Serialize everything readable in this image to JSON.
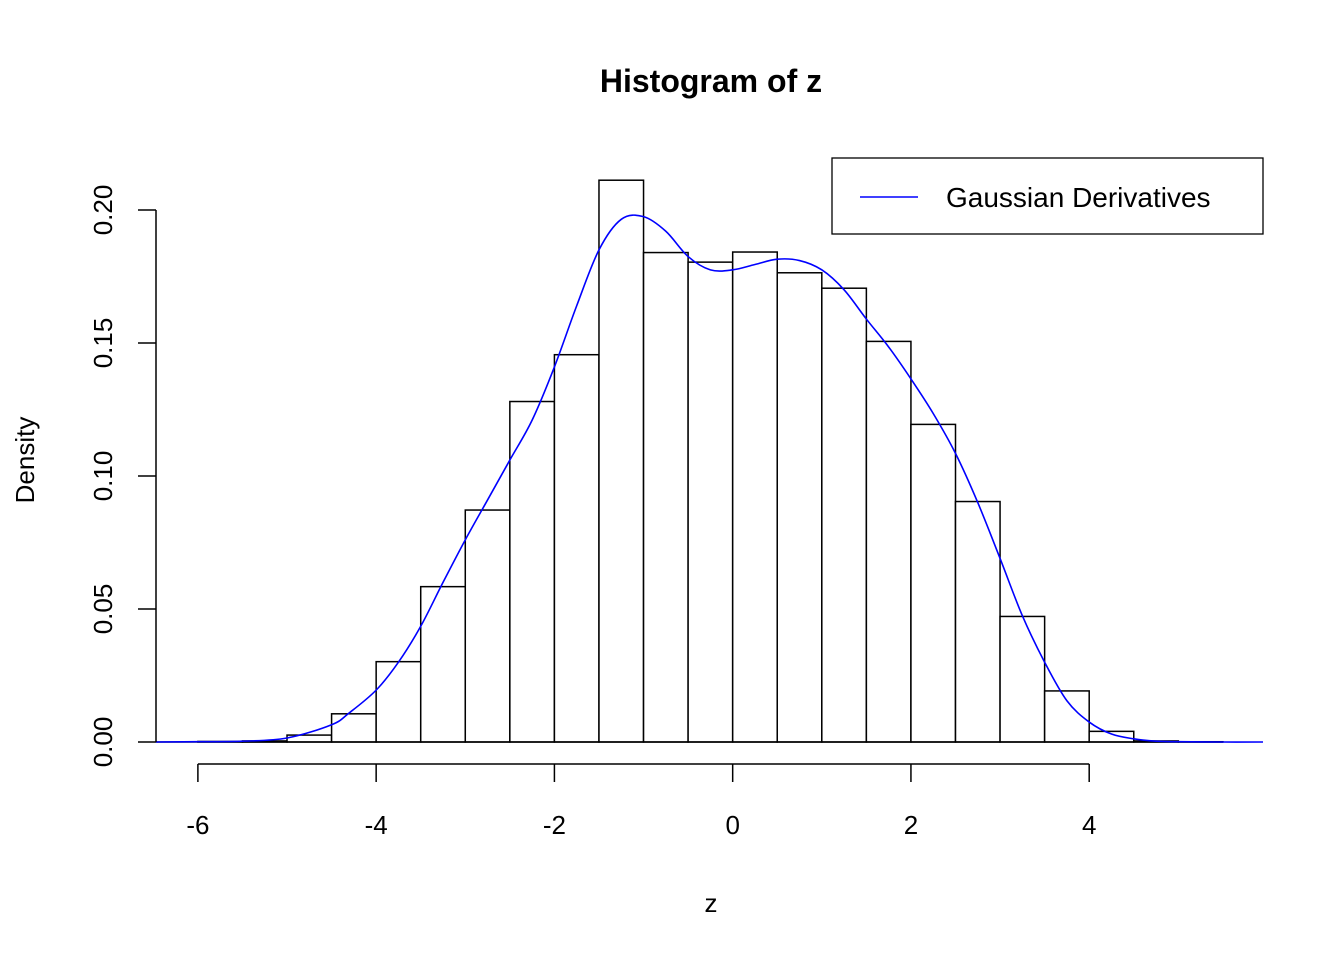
{
  "chart_data": {
    "type": "bar",
    "title": "Histogram of z",
    "xlabel": "z",
    "ylabel": "Density",
    "xlim": [
      -6.47,
      5.95
    ],
    "ylim": [
      0,
      0.21
    ],
    "grid": false,
    "legend_position": "top-right",
    "x_axis": {
      "ticks": [
        -6,
        -4,
        -2,
        0,
        2,
        4
      ],
      "tick_labels": [
        "-6",
        "-4",
        "-2",
        "0",
        "2",
        "4"
      ]
    },
    "y_axis": {
      "ticks": [
        0.0,
        0.05,
        0.1,
        0.15,
        0.2
      ],
      "tick_labels": [
        "0.00",
        "0.05",
        "0.10",
        "0.15",
        "0.20"
      ]
    },
    "bars": {
      "bin_edges": [
        -6.0,
        -5.5,
        -5.0,
        -4.5,
        -4.0,
        -3.5,
        -3.0,
        -2.5,
        -2.0,
        -1.5,
        -1.0,
        -0.5,
        0.0,
        0.5,
        1.0,
        1.5,
        2.0,
        2.5,
        3.0,
        3.5,
        4.0,
        4.5,
        5.0,
        5.5
      ],
      "densities": [
        0.0002,
        0.0004,
        0.0026,
        0.0106,
        0.0302,
        0.0584,
        0.0872,
        0.128,
        0.1456,
        0.2112,
        0.184,
        0.1804,
        0.1842,
        0.1764,
        0.1706,
        0.1506,
        0.1194,
        0.0904,
        0.0472,
        0.0192,
        0.004,
        0.0004,
        0.0001
      ],
      "fill": "#ffffff",
      "stroke": "#000000"
    },
    "series": [
      {
        "name": "Gaussian Derivatives",
        "color": "#0000ff",
        "type": "line",
        "x": [
          -6.47,
          -6.0,
          -5.5,
          -5.0,
          -4.5,
          -4.3,
          -4.0,
          -3.75,
          -3.5,
          -3.25,
          -3.0,
          -2.75,
          -2.5,
          -2.25,
          -2.0,
          -1.75,
          -1.5,
          -1.25,
          -1.0,
          -0.75,
          -0.5,
          -0.25,
          0.0,
          0.25,
          0.5,
          0.75,
          1.0,
          1.25,
          1.5,
          1.75,
          2.0,
          2.25,
          2.5,
          2.75,
          3.0,
          3.25,
          3.5,
          3.75,
          4.0,
          4.25,
          4.5,
          4.75,
          5.0,
          5.5,
          5.95
        ],
        "y": [
          0.0,
          0.0001,
          0.0003,
          0.0015,
          0.0065,
          0.011,
          0.0195,
          0.03,
          0.0435,
          0.06,
          0.076,
          0.091,
          0.106,
          0.121,
          0.141,
          0.164,
          0.185,
          0.1965,
          0.1975,
          0.192,
          0.1825,
          0.1775,
          0.1775,
          0.1795,
          0.1815,
          0.181,
          0.1775,
          0.17,
          0.159,
          0.1485,
          0.1365,
          0.1235,
          0.1085,
          0.09,
          0.069,
          0.0475,
          0.03,
          0.0155,
          0.0075,
          0.003,
          0.0012,
          0.0003,
          0.0001,
          0.0,
          0.0
        ]
      }
    ]
  }
}
